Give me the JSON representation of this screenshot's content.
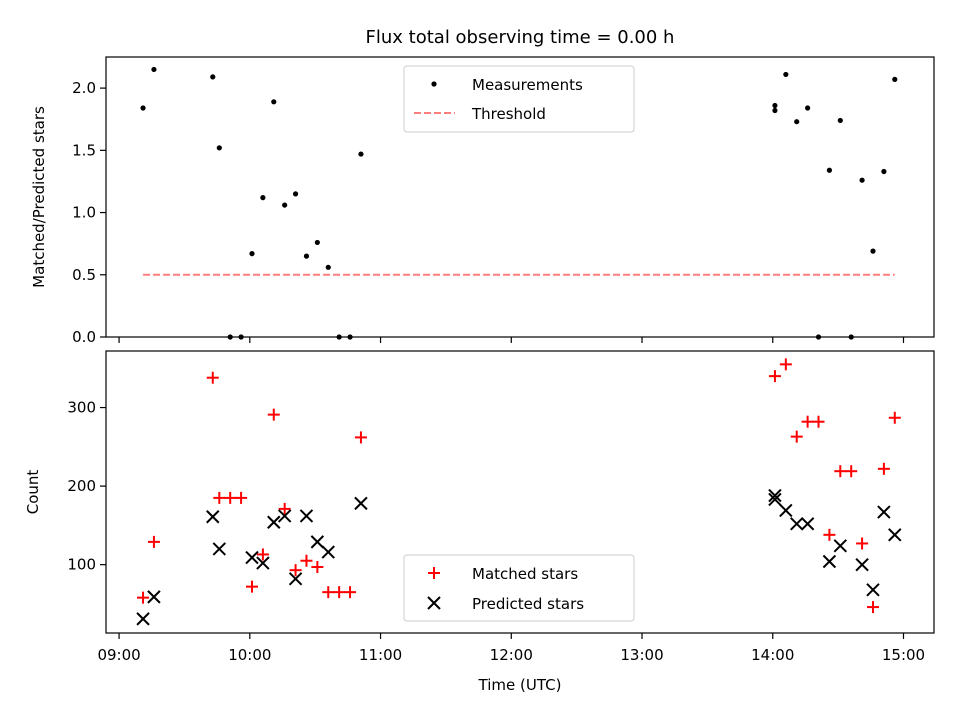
{
  "chart_data": [
    {
      "type": "scatter",
      "title": "Flux total observing time = 0.00 h",
      "xlabel": "",
      "ylabel": "Matched/Predicted stars",
      "xlim": [
        "08:54",
        "15:14"
      ],
      "ylim": [
        0,
        2.25
      ],
      "yticks": [
        0.0,
        0.5,
        1.0,
        1.5,
        2.0
      ],
      "ytick_labels": [
        "0.0",
        "0.5",
        "1.0",
        "1.5",
        "2.0"
      ],
      "legend_position": "upper center",
      "series": [
        {
          "name": "Measurements",
          "marker": "dot",
          "color": "#000000",
          "points": [
            {
              "x": "09:11",
              "y": 1.84
            },
            {
              "x": "09:16",
              "y": 2.15
            },
            {
              "x": "09:43",
              "y": 2.09
            },
            {
              "x": "09:46",
              "y": 1.52
            },
            {
              "x": "09:51",
              "y": 0.0
            },
            {
              "x": "09:56",
              "y": 0.0
            },
            {
              "x": "10:01",
              "y": 0.67
            },
            {
              "x": "10:06",
              "y": 1.12
            },
            {
              "x": "10:11",
              "y": 1.89
            },
            {
              "x": "10:16",
              "y": 1.06
            },
            {
              "x": "10:21",
              "y": 1.15
            },
            {
              "x": "10:26",
              "y": 0.65
            },
            {
              "x": "10:31",
              "y": 0.76
            },
            {
              "x": "10:36",
              "y": 0.56
            },
            {
              "x": "10:41",
              "y": 0.0
            },
            {
              "x": "10:46",
              "y": 0.0
            },
            {
              "x": "10:51",
              "y": 1.47
            },
            {
              "x": "14:01",
              "y": 1.86
            },
            {
              "x": "14:01",
              "y": 1.82
            },
            {
              "x": "14:06",
              "y": 2.11
            },
            {
              "x": "14:11",
              "y": 1.73
            },
            {
              "x": "14:16",
              "y": 1.84
            },
            {
              "x": "14:21",
              "y": 0.0
            },
            {
              "x": "14:26",
              "y": 1.34
            },
            {
              "x": "14:31",
              "y": 1.74
            },
            {
              "x": "14:36",
              "y": 0.0
            },
            {
              "x": "14:41",
              "y": 1.26
            },
            {
              "x": "14:46",
              "y": 0.69
            },
            {
              "x": "14:51",
              "y": 1.33
            },
            {
              "x": "14:56",
              "y": 2.07
            }
          ]
        },
        {
          "name": "Threshold",
          "type": "line",
          "style": "dashed",
          "color": "#ff7f7f",
          "points": [
            {
              "x": "09:11",
              "y": 0.5
            },
            {
              "x": "14:56",
              "y": 0.5
            }
          ]
        }
      ]
    },
    {
      "type": "scatter",
      "title": "",
      "xlabel": "Time (UTC)",
      "ylabel": "Count",
      "xlim": [
        "08:54",
        "15:14"
      ],
      "ylim": [
        13,
        372
      ],
      "yticks": [
        100,
        200,
        300
      ],
      "ytick_labels": [
        "100",
        "200",
        "300"
      ],
      "xticks": [
        "09:00",
        "10:00",
        "11:00",
        "12:00",
        "13:00",
        "14:00",
        "15:00"
      ],
      "xtick_labels": [
        "09:00",
        "10:00",
        "11:00",
        "12:00",
        "13:00",
        "14:00",
        "15:00"
      ],
      "legend_position": "lower center",
      "series": [
        {
          "name": "Matched stars",
          "marker": "plus",
          "color": "#ff0000",
          "points": [
            {
              "x": "09:11",
              "y": 58
            },
            {
              "x": "09:16",
              "y": 129
            },
            {
              "x": "09:43",
              "y": 338
            },
            {
              "x": "09:46",
              "y": 185
            },
            {
              "x": "09:51",
              "y": 185
            },
            {
              "x": "09:56",
              "y": 185
            },
            {
              "x": "10:01",
              "y": 72
            },
            {
              "x": "10:06",
              "y": 113
            },
            {
              "x": "10:11",
              "y": 291
            },
            {
              "x": "10:16",
              "y": 171
            },
            {
              "x": "10:21",
              "y": 93
            },
            {
              "x": "10:26",
              "y": 105
            },
            {
              "x": "10:31",
              "y": 97
            },
            {
              "x": "10:36",
              "y": 65
            },
            {
              "x": "10:41",
              "y": 65
            },
            {
              "x": "10:46",
              "y": 65
            },
            {
              "x": "10:51",
              "y": 262
            },
            {
              "x": "14:01",
              "y": 340
            },
            {
              "x": "14:06",
              "y": 355
            },
            {
              "x": "14:11",
              "y": 263
            },
            {
              "x": "14:16",
              "y": 282
            },
            {
              "x": "14:21",
              "y": 282
            },
            {
              "x": "14:26",
              "y": 138
            },
            {
              "x": "14:31",
              "y": 219
            },
            {
              "x": "14:36",
              "y": 219
            },
            {
              "x": "14:41",
              "y": 127
            },
            {
              "x": "14:46",
              "y": 46
            },
            {
              "x": "14:51",
              "y": 222
            },
            {
              "x": "14:56",
              "y": 287
            }
          ]
        },
        {
          "name": "Predicted stars",
          "marker": "x",
          "color": "#000000",
          "points": [
            {
              "x": "09:11",
              "y": 31
            },
            {
              "x": "09:16",
              "y": 59
            },
            {
              "x": "09:43",
              "y": 161
            },
            {
              "x": "09:46",
              "y": 120
            },
            {
              "x": "10:01",
              "y": 109
            },
            {
              "x": "10:06",
              "y": 102
            },
            {
              "x": "10:11",
              "y": 154
            },
            {
              "x": "10:16",
              "y": 162
            },
            {
              "x": "10:21",
              "y": 82
            },
            {
              "x": "10:26",
              "y": 162
            },
            {
              "x": "10:31",
              "y": 129
            },
            {
              "x": "10:36",
              "y": 116
            },
            {
              "x": "10:51",
              "y": 178
            },
            {
              "x": "14:01",
              "y": 188
            },
            {
              "x": "14:01",
              "y": 183
            },
            {
              "x": "14:06",
              "y": 169
            },
            {
              "x": "14:11",
              "y": 152
            },
            {
              "x": "14:16",
              "y": 152
            },
            {
              "x": "14:26",
              "y": 104
            },
            {
              "x": "14:31",
              "y": 124
            },
            {
              "x": "14:41",
              "y": 100
            },
            {
              "x": "14:46",
              "y": 68
            },
            {
              "x": "14:51",
              "y": 167
            },
            {
              "x": "14:56",
              "y": 138
            }
          ]
        }
      ]
    }
  ]
}
